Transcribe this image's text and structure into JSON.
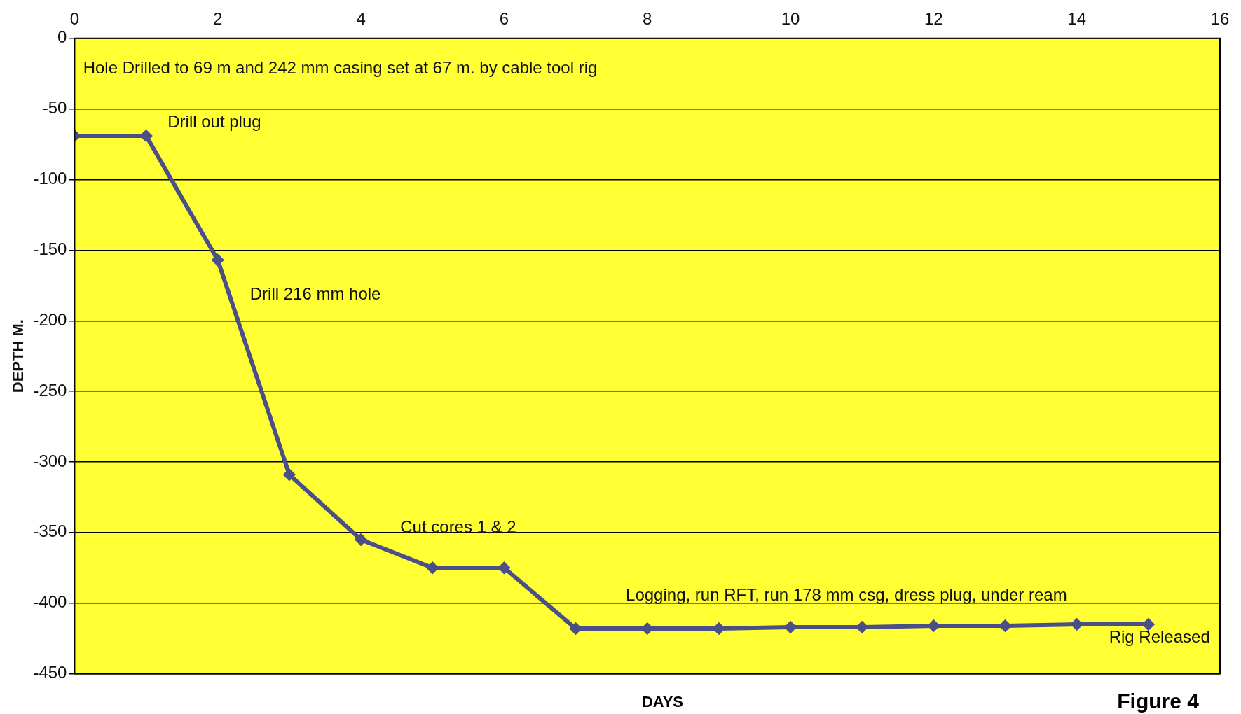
{
  "chart_data": {
    "type": "line",
    "xlabel": "DAYS",
    "ylabel": "DEPTH M.",
    "x": [
      0,
      1,
      2,
      3,
      4,
      5,
      6,
      7,
      8,
      9,
      10,
      11,
      12,
      13,
      14,
      15
    ],
    "series": [
      {
        "color": "#4a4f88",
        "values": [
          -69,
          -69,
          -157,
          -309,
          -355,
          -375,
          -375,
          -418,
          -418,
          -418,
          -417,
          -417,
          -416,
          -416,
          -415,
          -415
        ]
      }
    ],
    "xlim": [
      0,
      16
    ],
    "xticks": [
      0,
      2,
      4,
      6,
      8,
      10,
      12,
      14,
      16
    ],
    "ylim": [
      -450,
      0
    ],
    "yticks": [
      -450,
      -400,
      -350,
      -300,
      -250,
      -200,
      -150,
      -100,
      -50,
      0
    ],
    "grid": "y",
    "legend": false,
    "marker": "diamond",
    "line_style": "solid",
    "annotations": [
      "Hole Drilled to 69 m and 242 mm casing set at 67 m. by cable tool rig",
      "Drill out plug",
      "Drill 216 mm hole",
      "Cut cores 1 & 2",
      "Logging, run RFT, run 178 mm csg, dress plug, under ream",
      "Rig Released",
      "Figure 4"
    ]
  }
}
